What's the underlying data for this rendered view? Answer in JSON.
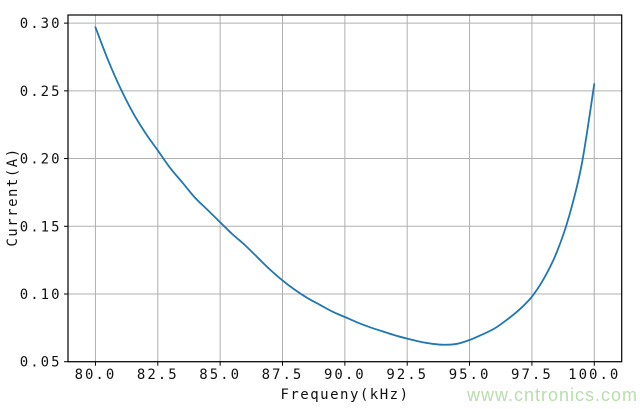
{
  "figure": {
    "watermark_text": "www.cntronics.com",
    "colors": {
      "background": "#ffffff",
      "line": "#1f77b4",
      "grid": "#b0b0b0",
      "spine": "#000000",
      "text": "#111111",
      "watermark": "#b6dfab"
    }
  },
  "chart_data": {
    "type": "line",
    "title": "",
    "xlabel": "Frequeny(kHz)",
    "ylabel": "Current(A)",
    "xlim": [
      78.9,
      101.1
    ],
    "ylim": [
      0.05,
      0.306
    ],
    "grid": true,
    "legend_position": "none",
    "xticks": {
      "values": [
        80.0,
        82.5,
        85.0,
        87.5,
        90.0,
        92.5,
        95.0,
        97.5,
        100.0
      ],
      "labels": [
        "80.0",
        "82.5",
        "85.0",
        "87.5",
        "90.0",
        "92.5",
        "95.0",
        "97.5",
        "100.0"
      ]
    },
    "yticks": {
      "values": [
        0.05,
        0.1,
        0.15,
        0.2,
        0.25,
        0.3
      ],
      "labels": [
        "0.05",
        "0.10",
        "0.15",
        "0.20",
        "0.25",
        "0.30"
      ]
    },
    "series": [
      {
        "name": "Current",
        "color": "#1f77b4",
        "x": [
          80.0,
          80.5,
          81.0,
          81.5,
          82.0,
          82.5,
          83.0,
          83.5,
          84.0,
          84.5,
          85.0,
          85.5,
          86.0,
          86.5,
          87.0,
          87.5,
          88.0,
          88.5,
          89.0,
          89.5,
          90.0,
          90.5,
          91.0,
          91.5,
          92.0,
          92.5,
          93.0,
          93.5,
          94.0,
          94.5,
          95.0,
          95.5,
          96.0,
          96.5,
          97.0,
          97.5,
          98.0,
          98.5,
          99.0,
          99.5,
          100.0
        ],
        "y": [
          0.297,
          0.273,
          0.252,
          0.234,
          0.219,
          0.206,
          0.193,
          0.182,
          0.171,
          0.162,
          0.153,
          0.144,
          0.136,
          0.127,
          0.118,
          0.11,
          0.103,
          0.097,
          0.092,
          0.087,
          0.083,
          0.079,
          0.0755,
          0.0725,
          0.0695,
          0.067,
          0.0648,
          0.0632,
          0.0625,
          0.0632,
          0.066,
          0.07,
          0.0745,
          0.081,
          0.0885,
          0.098,
          0.112,
          0.131,
          0.158,
          0.196,
          0.255
        ]
      }
    ],
    "annotations": {
      "min_point": {
        "x": 94.0,
        "y": 0.0625
      }
    }
  }
}
